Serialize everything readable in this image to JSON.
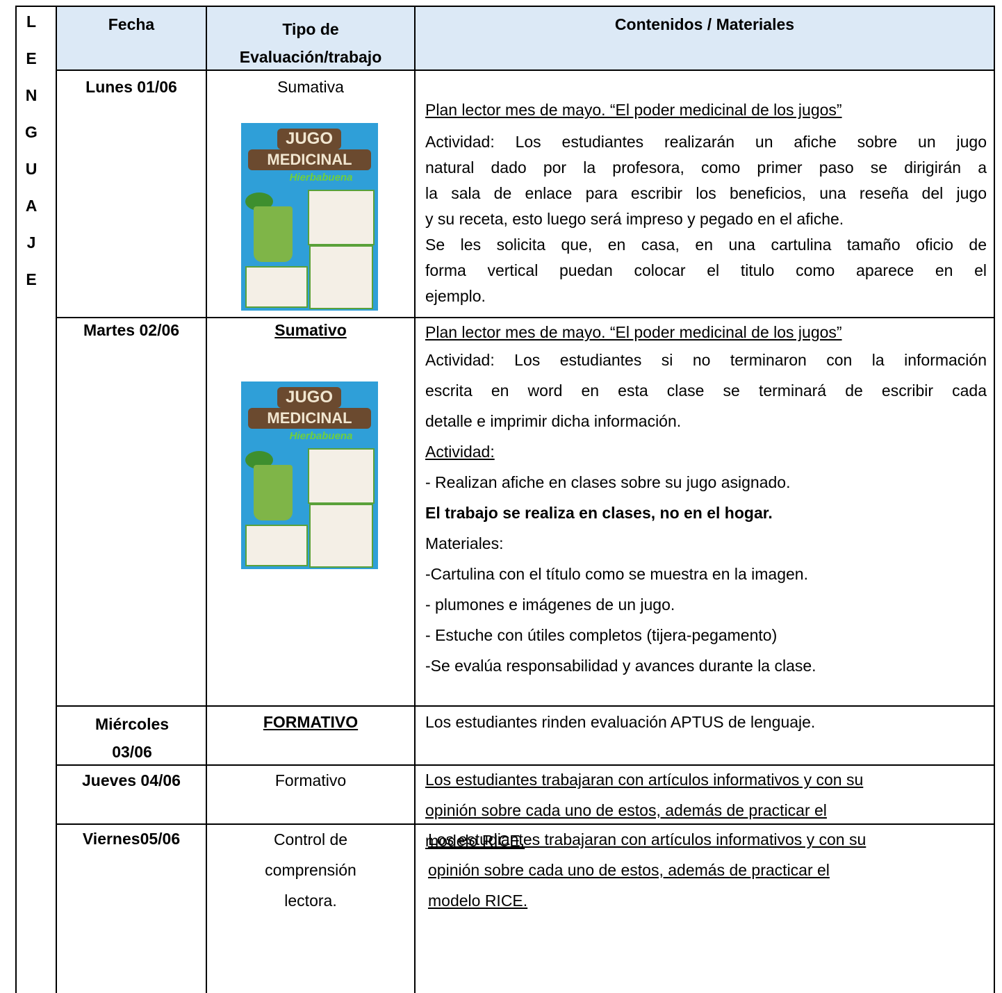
{
  "subject_letters": [
    "L",
    "E",
    "N",
    "G",
    "U",
    "A",
    "J",
    "E"
  ],
  "poster": {
    "title_1": "JUGO",
    "title_2": "MEDICINAL",
    "subtitle": "Hierbabuena"
  },
  "table": {
    "header": [
      "Fecha",
      "Tipo de Evaluación/trabajo",
      "Contenidos / Materiales"
    ],
    "rows": [
      {
        "date": "Lunes 01/06",
        "type": "Sumativa",
        "content": [
          "Plan lector mes de mayo. “El poder medicinal de los jugos”",
          "Actividad: Los estudiantes realizarán un afiche sobre un jugo",
          "natural dado por la profesora, como primer paso se dirigirán a",
          "la sala de enlace para escribir los beneficios, una reseña del jugo",
          "y su receta, esto luego será impreso y pegado en el afiche.",
          "Se les solicita que, en casa, en una cartulina tamaño oficio de",
          "forma vertical puedan colocar el titulo como aparece en el",
          "ejemplo."
        ]
      },
      {
        "date": "Martes 02/06",
        "type": "Sumativo",
        "content": [
          "Plan lector mes de mayo. “El poder medicinal de los jugos”",
          "Actividad: Los estudiantes si no terminaron con la información",
          "escrita en word en esta clase se terminará de escribir cada",
          "detalle e imprimir dicha información.",
          "Actividad:",
          "- Realizan afiche en clases sobre su jugo asignado.",
          "El trabajo se realiza en clases, no en el hogar.",
          "Materiales:",
          "-Cartulina con el título como se muestra en la imagen.",
          "- plumones e imágenes de un jugo.",
          "- Estuche con útiles completos (tijera-pegamento)",
          "-Se evalúa responsabilidad y avances durante la clase."
        ]
      },
      {
        "date": "Miércoles 03/06",
        "type": "FORMATIVO",
        "content": [
          "Los estudiantes rinden evaluación APTUS de lenguaje."
        ]
      },
      {
        "date": "Jueves 04/06",
        "type": "Formativo",
        "content": [
          "Los estudiantes trabajaran con artículos informativos y con su",
          "opinión sobre cada uno de estos, además de practicar el",
          "modelo RICE."
        ]
      },
      {
        "date": "Viernes05/06",
        "type": "Control de comprensión lectora.",
        "content": [
          "Los estudiantes trabajaran con artículos informativos y con su",
          "opinión sobre cada uno de estos, además de practicar el",
          "modelo RICE."
        ]
      }
    ]
  }
}
